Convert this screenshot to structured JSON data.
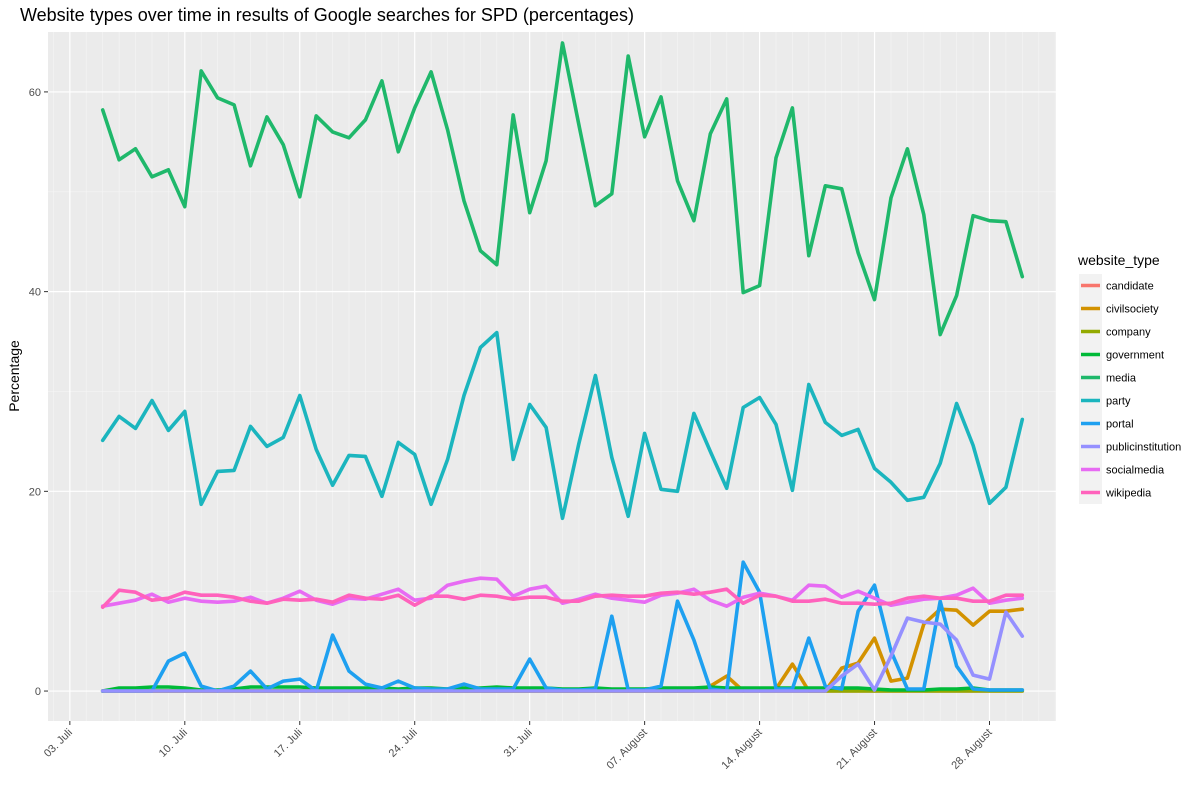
{
  "chart_data": {
    "type": "line",
    "title": "Website types over time in results of Google searches for SPD (percentages)",
    "xlabel": "",
    "ylabel": "Percentage",
    "ylim": [
      -3,
      66
    ],
    "y_ticks": [
      0,
      20,
      40,
      60
    ],
    "x_ticks": [
      "03. Juli",
      "10. Juli",
      "17. Juli",
      "24. Juli",
      "31. Juli",
      "07. August",
      "14. August",
      "21. August",
      "28. August"
    ],
    "grid": true,
    "legend": {
      "title": "website_type",
      "position": "right"
    },
    "dates": [
      "2017-07-05",
      "2017-07-06",
      "2017-07-07",
      "2017-07-08",
      "2017-07-09",
      "2017-07-10",
      "2017-07-11",
      "2017-07-12",
      "2017-07-13",
      "2017-07-14",
      "2017-07-15",
      "2017-07-16",
      "2017-07-17",
      "2017-07-18",
      "2017-07-19",
      "2017-07-20",
      "2017-07-21",
      "2017-07-22",
      "2017-07-23",
      "2017-07-24",
      "2017-07-25",
      "2017-07-26",
      "2017-07-27",
      "2017-07-28",
      "2017-07-29",
      "2017-07-30",
      "2017-07-31",
      "2017-08-01",
      "2017-08-02",
      "2017-08-03",
      "2017-08-04",
      "2017-08-05",
      "2017-08-06",
      "2017-08-07",
      "2017-08-08",
      "2017-08-09",
      "2017-08-10",
      "2017-08-11",
      "2017-08-12",
      "2017-08-13",
      "2017-08-14",
      "2017-08-15",
      "2017-08-16",
      "2017-08-17",
      "2017-08-18",
      "2017-08-19",
      "2017-08-20",
      "2017-08-21",
      "2017-08-22",
      "2017-08-23",
      "2017-08-24",
      "2017-08-25",
      "2017-08-26",
      "2017-08-27",
      "2017-08-28",
      "2017-08-29",
      "2017-08-30"
    ],
    "series": [
      {
        "name": "candidate",
        "color": "#F8766D",
        "values": [
          0,
          0,
          0,
          0,
          0,
          0,
          0,
          0,
          0,
          0,
          0,
          0,
          0,
          0,
          0,
          0,
          0,
          0,
          0,
          0,
          0,
          0,
          0,
          0,
          0,
          0,
          0,
          0,
          0,
          0,
          0,
          0,
          0,
          0,
          0,
          0,
          0,
          0,
          0,
          0,
          0,
          0,
          0,
          0,
          0,
          0,
          0,
          0,
          0,
          0,
          0,
          0,
          0,
          0,
          0,
          0,
          0
        ]
      },
      {
        "name": "civilsociety",
        "color": "#D39200",
        "values": [
          0,
          0,
          0,
          0,
          0,
          0,
          0,
          0,
          0,
          0,
          0,
          0,
          0,
          0,
          0,
          0,
          0,
          0,
          0,
          0,
          0,
          0,
          0,
          0,
          0,
          0,
          0,
          0,
          0,
          0,
          0,
          0,
          0,
          0,
          0,
          0,
          0,
          0.5,
          1.5,
          0,
          0.2,
          0.2,
          2.7,
          0,
          0,
          2.3,
          2.8,
          5.3,
          1,
          1.3,
          6.7,
          8.2,
          8.1,
          6.6,
          8,
          8,
          8.2
        ]
      },
      {
        "name": "company",
        "color": "#93AA00",
        "values": [
          0,
          0,
          0,
          0,
          0,
          0,
          0,
          0,
          0,
          0,
          0,
          0,
          0,
          0,
          0,
          0,
          0,
          0,
          0,
          0,
          0,
          0,
          0,
          0,
          0,
          0,
          0,
          0,
          0,
          0,
          0,
          0,
          0,
          0,
          0,
          0,
          0,
          0,
          0,
          0,
          0,
          0,
          0,
          0,
          0,
          0,
          0,
          0,
          0,
          0,
          0,
          0,
          0,
          0,
          0,
          0,
          0
        ]
      },
      {
        "name": "government",
        "color": "#00BA38",
        "values": [
          0,
          0.3,
          0.3,
          0.4,
          0.4,
          0.3,
          0.1,
          0.1,
          0.2,
          0.4,
          0.4,
          0.4,
          0.4,
          0.3,
          0.3,
          0.3,
          0.3,
          0.3,
          0.2,
          0.3,
          0.3,
          0.2,
          0.3,
          0.3,
          0.4,
          0.3,
          0.3,
          0.3,
          0.2,
          0.2,
          0.3,
          0.2,
          0.2,
          0.2,
          0.3,
          0.3,
          0.3,
          0.4,
          0.3,
          0.3,
          0.3,
          0.3,
          0.3,
          0.3,
          0.3,
          0.3,
          0.3,
          0.2,
          0.1,
          0.1,
          0.1,
          0.2,
          0.2,
          0.3,
          0.1,
          0.1,
          0.1
        ]
      },
      {
        "name": "media",
        "color": "#1FB86B",
        "values": [
          58.2,
          53.2,
          54.3,
          51.5,
          52.2,
          48.5,
          62.1,
          59.4,
          58.7,
          52.6,
          57.5,
          54.7,
          49.5,
          57.6,
          56,
          55.4,
          57.2,
          61.1,
          54,
          58.4,
          62,
          56.2,
          49.1,
          44.1,
          42.7,
          57.7,
          47.9,
          53.1,
          64.9,
          56.7,
          48.6,
          49.8,
          63.6,
          55.5,
          59.5,
          51.1,
          47.1,
          55.8,
          59.3,
          39.9,
          40.6,
          53.4,
          58.4,
          43.6,
          50.6,
          50.3,
          43.9,
          39.2,
          49.4,
          54.3,
          47.7,
          35.7,
          39.6,
          47.6,
          47.1,
          47,
          41.5
        ]
      },
      {
        "name": "party",
        "color": "#1BB5BE",
        "values": [
          25.1,
          27.5,
          26.3,
          29.1,
          26.1,
          28,
          18.7,
          22,
          22.1,
          26.5,
          24.5,
          25.4,
          29.6,
          24.2,
          20.6,
          23.6,
          23.5,
          19.5,
          24.9,
          23.7,
          18.7,
          23.2,
          29.6,
          34.4,
          35.9,
          23.2,
          28.7,
          26.4,
          17.3,
          24.8,
          31.6,
          23.4,
          17.5,
          25.8,
          20.2,
          20,
          27.8,
          24,
          20.3,
          28.4,
          29.4,
          26.7,
          20.1,
          30.7,
          26.9,
          25.6,
          26.2,
          22.3,
          20.9,
          19.1,
          19.4,
          22.8,
          28.8,
          24.6,
          18.8,
          20.4,
          27.2
        ]
      },
      {
        "name": "portal",
        "color": "#1EA0F0",
        "values": [
          0,
          0,
          0,
          0,
          3,
          3.8,
          0.5,
          0,
          0.5,
          2,
          0.2,
          1,
          1.2,
          0,
          5.6,
          2,
          0.7,
          0.3,
          1,
          0.3,
          0.2,
          0.2,
          0.7,
          0.2,
          0.2,
          0.2,
          3.2,
          0.3,
          0.1,
          0.1,
          0.2,
          7.5,
          0.1,
          0.1,
          0.5,
          9,
          5.1,
          0.2,
          0,
          12.9,
          9.9,
          0.2,
          0.2,
          5.3,
          0.5,
          0.2,
          8,
          10.6,
          4,
          0.2,
          0.2,
          9,
          2.5,
          0.2,
          0.1,
          0.1,
          0.1
        ]
      },
      {
        "name": "publicinstitution",
        "color": "#9590FF",
        "values": [
          0,
          0,
          0,
          0,
          0,
          0,
          0,
          0,
          0,
          0,
          0,
          0,
          0,
          0,
          0,
          0,
          0,
          0,
          0,
          0,
          0,
          0,
          0,
          0,
          0,
          0,
          0,
          0,
          0,
          0,
          0,
          0,
          0,
          0,
          0,
          0,
          0,
          0,
          0,
          0,
          0,
          0,
          0,
          0,
          0,
          1.5,
          2.7,
          0.1,
          3.5,
          7.3,
          6.9,
          6.7,
          5.1,
          1.6,
          1.2,
          7.9,
          5.5
        ]
      },
      {
        "name": "socialmedia",
        "color": "#E76BF3",
        "values": [
          8.5,
          8.8,
          9.1,
          9.7,
          8.9,
          9.3,
          9,
          8.9,
          9,
          9.4,
          8.8,
          9.3,
          10,
          9.1,
          8.7,
          9.3,
          9.2,
          9.7,
          10.2,
          9.1,
          9.3,
          10.6,
          11,
          11.3,
          11.2,
          9.5,
          10.2,
          10.5,
          8.8,
          9.2,
          9.7,
          9.3,
          9.1,
          8.9,
          9.6,
          9.8,
          10.2,
          9.1,
          8.5,
          9.4,
          9.8,
          9.5,
          9.1,
          10.6,
          10.5,
          9.4,
          10,
          9.3,
          8.6,
          8.9,
          9.2,
          9.3,
          9.6,
          10.3,
          8.8,
          9.1,
          9.3
        ]
      },
      {
        "name": "wikipedia",
        "color": "#FF62BC",
        "values": [
          8.4,
          10.1,
          9.9,
          9.1,
          9.3,
          9.9,
          9.6,
          9.6,
          9.4,
          9,
          8.8,
          9.2,
          9.1,
          9.2,
          8.9,
          9.6,
          9.3,
          9.2,
          9.6,
          8.6,
          9.5,
          9.5,
          9.2,
          9.6,
          9.5,
          9.2,
          9.4,
          9.4,
          9,
          9,
          9.5,
          9.6,
          9.5,
          9.5,
          9.8,
          9.9,
          9.7,
          9.9,
          10.2,
          8.8,
          9.6,
          9.5,
          9,
          9,
          9.2,
          8.8,
          8.8,
          8.7,
          8.8,
          9.3,
          9.5,
          9.3,
          9.3,
          9,
          9,
          9.6,
          9.6
        ]
      }
    ]
  }
}
